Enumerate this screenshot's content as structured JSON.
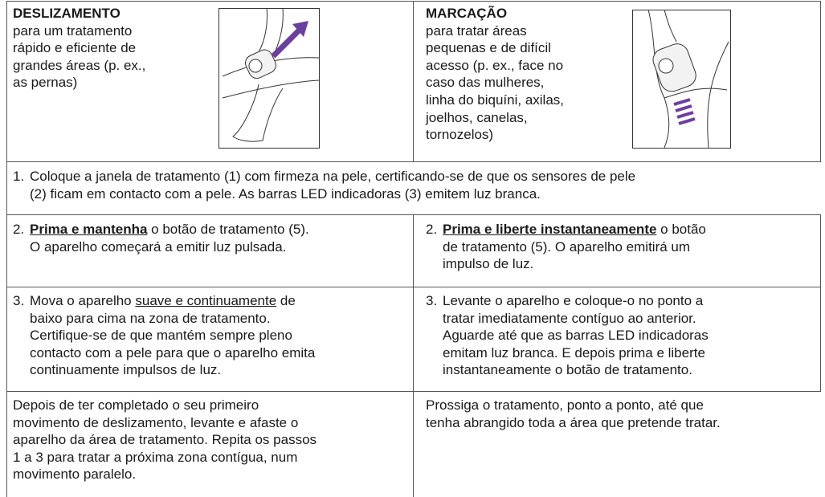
{
  "header_row": [
    {
      "title": "DESLIZAMENTO",
      "lines": [
        "para um tratamento",
        "rápido e eficiente de",
        "grandes áreas (p. ex.,",
        "as pernas)"
      ]
    },
    {
      "title": "MARCAÇÃO",
      "lines": [
        "para tratar áreas",
        "pequenas e de difícil",
        "acesso (p. ex., face no",
        "caso das mulheres,",
        "linha do biquíni, axilas,",
        "joelhos, canelas,",
        "tornozelos)"
      ]
    }
  ],
  "step_1": {
    "number": "1.",
    "lines": [
      [
        "Coloque a janela de tratamento (1) com firmeza na pele, certificando-se de que os sensores de pele"
      ],
      [
        "(2) ficam em contacto com a pele. As barras LED indicadoras (3) emitem luz branca."
      ]
    ]
  },
  "step_rows": [
    [
      {
        "number": "2.",
        "lines": [
          [
            {
              "text": "Prima e mantenha",
              "style": "bold-underline"
            },
            " o botão de tratamento (5)."
          ],
          [
            "O aparelho começará a emitir luz pulsada."
          ]
        ]
      },
      {
        "number": "2.",
        "lines": [
          [
            {
              "text": "Prima e liberte instantaneamente",
              "style": "bold-underline"
            },
            " o botão"
          ],
          [
            "de tratamento (5). O aparelho emitirá um"
          ],
          [
            "impulso de luz."
          ]
        ]
      }
    ],
    [
      {
        "number": "3.",
        "lines": [
          [
            "Mova o aparelho ",
            {
              "text": "suave e continuamente",
              "style": "underline"
            },
            " de"
          ],
          [
            "baixo para cima na zona de tratamento."
          ],
          [
            "Certifique-se de que mantém sempre pleno"
          ],
          [
            "contacto com a pele para que o aparelho emita"
          ],
          [
            "continuamente impulsos de luz."
          ]
        ]
      },
      {
        "number": "3.",
        "lines": [
          [
            "Levante o aparelho e coloque-o no ponto a"
          ],
          [
            "tratar imediatamente contíguo ao anterior."
          ],
          [
            "Aguarde até que as barras LED indicadoras"
          ],
          [
            "emitam luz branca. E depois prima e liberte"
          ],
          [
            "instantaneamente o botão de tratamento."
          ]
        ]
      }
    ]
  ],
  "closing_row": [
    {
      "lines": [
        "Depois de ter completado o seu primeiro",
        "movimento de deslizamento, levante e afaste o",
        "aparelho da área de tratamento. Repita os passos",
        "1 a 3 para tratar a próxima zona contígua, num",
        "movimento paralelo."
      ]
    },
    {
      "lines": [
        "Prossiga o tratamento, ponto a ponto, até que",
        "tenha abrangido toda a área que pretende tratar."
      ]
    }
  ]
}
